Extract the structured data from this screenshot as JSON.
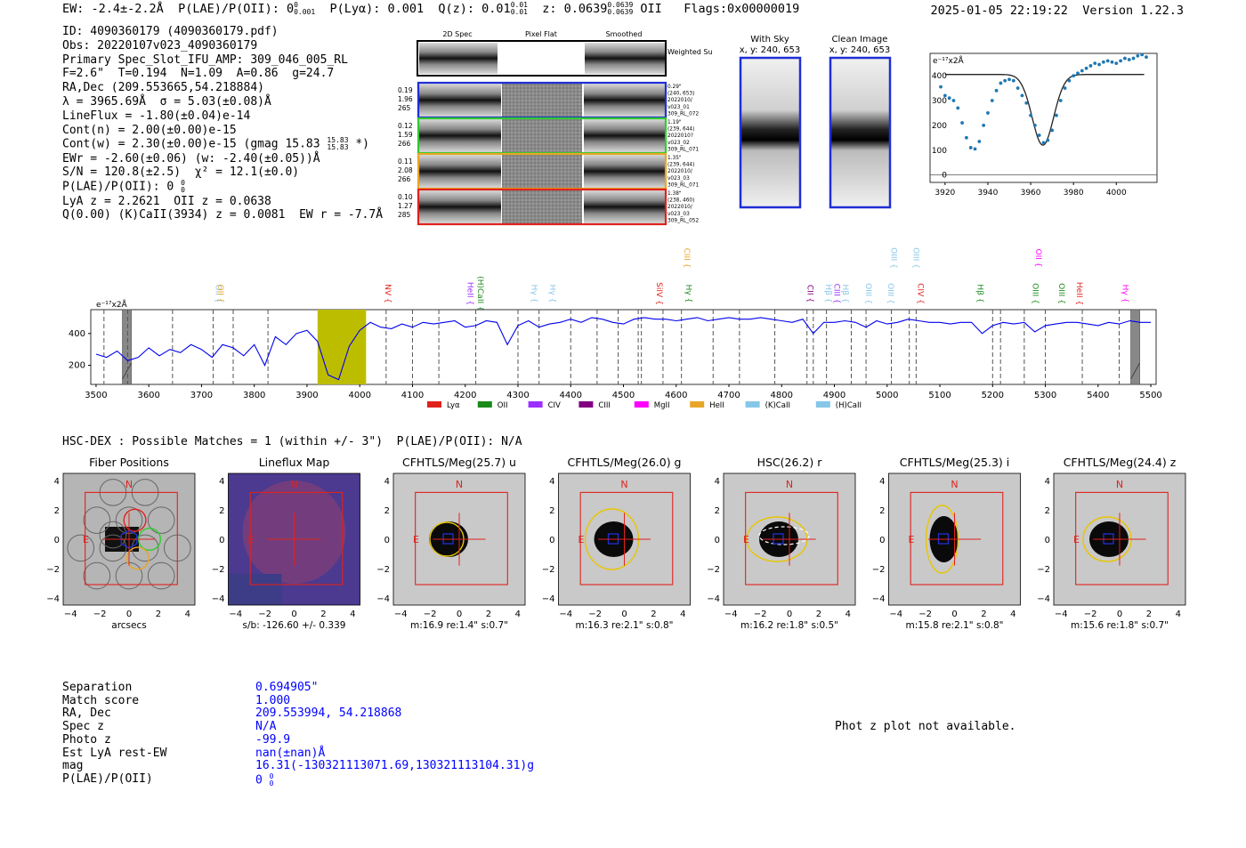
{
  "header": {
    "ew": "EW: -2.4±-2.2Å",
    "plae_label": "P(LAE)/P(OII): 0",
    "plae_sup": "0",
    "plae_sub": "0.001",
    "plya": "P(Lyα): 0.001",
    "qz_label": "Q(z): 0.01",
    "qz_sup": "0.01",
    "qz_sub": "0.01",
    "z_label": "z: 0.0639",
    "z_sup": "0.0639",
    "z_sub": "0.0639",
    "z_line": "OII",
    "flags": "Flags:0x00000019",
    "datetime": "2025-01-05 22:19:22",
    "version": "Version 1.22.3"
  },
  "info": {
    "id": "ID: 4090360179 (4090360179.pdf)",
    "obs": "Obs: 20220107v023_4090360179",
    "primary": "Primary Spec_Slot_IFU_AMP: 309_046_005_RL",
    "fibers": "F=2.6\"  T=0.194  N=1.09  A=0.86  g=24.7",
    "radec": "RA,Dec (209.553665,54.218884)",
    "lambda": "λ = 3965.69Å  σ = 5.03(±0.08)Å",
    "lineflux": "LineFlux = -1.80(±0.04)e-14",
    "contn": "Cont(n) = 2.00(±0.00)e-15",
    "contw": "Cont(w) = 2.30(±0.00)e-15 (gmag 15.83",
    "contw_sup": "15.83",
    "contw_sub": "15.83",
    "contw_end": "*)",
    "ewr": "EWr = -2.60(±0.06) (w: -2.40(±0.05))Å",
    "sn": "S/N = 120.8(±2.5)  χ² = 12.1(±0.0)",
    "plae": "P(LAE)/P(OII): 0",
    "plae_sup": "0",
    "plae_sub": "0",
    "lya": "LyA z = 2.2621  OII z = 0.0638",
    "q": "Q(0.00) (K)CaII(3934) z = 0.0081  EW r = -7.7Å"
  },
  "spec2d": {
    "col_titles": [
      "2D Spec",
      "Pixel Flat",
      "Smoothed"
    ],
    "weighted": "Weighted Sum",
    "rows": [
      {
        "left": [
          "0.19",
          "1.96",
          "265"
        ],
        "right": [
          "0.29\"",
          "(240, 653)",
          "2022010/",
          "v023_01",
          "309_RL_072"
        ],
        "color": "#1f2fd6"
      },
      {
        "left": [
          "0.12",
          "1.59",
          "266"
        ],
        "right": [
          "1.19\"",
          "(239, 644)",
          "2022010?",
          "v023_02",
          "309_RL_071"
        ],
        "color": "#2fcc2f"
      },
      {
        "left": [
          "0.11",
          "2.08",
          "266"
        ],
        "right": [
          "1.35\"",
          "(239, 644)",
          "2022010/",
          "v023_03",
          "309_RL_071"
        ],
        "color": "#e8a628"
      },
      {
        "left": [
          "0.10",
          "1.27",
          "285"
        ],
        "right": [
          "1.38\"",
          "(238, 460)",
          "2022010/",
          "v023_03",
          "309_RL_052"
        ],
        "color": "#e0221d"
      }
    ]
  },
  "cutouts": {
    "with_sky": "With Sky",
    "with_sky_xy": "x, y: 240, 653",
    "clean": "Clean Image",
    "clean_xy": "x, y: 240, 653"
  },
  "zoom_chart": {
    "type": "scatter",
    "units": "e⁻¹⁷x2Å",
    "x": [
      3918,
      3920,
      3922,
      3924,
      3926,
      3928,
      3930,
      3932,
      3934,
      3936,
      3938,
      3940,
      3942,
      3944,
      3946,
      3948,
      3950,
      3952,
      3954,
      3956,
      3958,
      3960,
      3962,
      3964,
      3966,
      3968,
      3970,
      3972,
      3974,
      3976,
      3978,
      3980,
      3982,
      3984,
      3986,
      3988,
      3990,
      3992,
      3994,
      3996,
      3998,
      4000,
      4002,
      4004,
      4006,
      4008,
      4010,
      4012,
      4014
    ],
    "y": [
      355,
      320,
      310,
      300,
      270,
      210,
      150,
      110,
      105,
      135,
      200,
      250,
      300,
      340,
      370,
      380,
      385,
      380,
      350,
      320,
      290,
      240,
      200,
      160,
      130,
      140,
      180,
      240,
      300,
      350,
      380,
      400,
      410,
      420,
      430,
      440,
      450,
      445,
      455,
      460,
      455,
      450,
      460,
      470,
      465,
      470,
      480,
      485,
      475
    ],
    "fit_label": "model",
    "ylim": [
      -30,
      490
    ],
    "xlim": [
      3913,
      4019
    ],
    "xticks": [
      "3920",
      "3940",
      "3960",
      "3980",
      "4000"
    ],
    "yticks": [
      "0",
      "100",
      "200",
      "300",
      "400"
    ]
  },
  "chart_data": {
    "type": "line",
    "title": "",
    "units": "e⁻¹⁷x2Å",
    "xlim": [
      3490,
      5510
    ],
    "ylim": [
      80,
      550
    ],
    "xticks": [
      "3500",
      "3600",
      "3700",
      "3800",
      "3900",
      "4000",
      "4100",
      "4200",
      "4300",
      "4400",
      "4500",
      "4600",
      "4700",
      "4800",
      "4900",
      "5000",
      "5100",
      "5200",
      "5300",
      "5400",
      "5500"
    ],
    "yticks": [
      "200",
      "400"
    ],
    "highlight_range": [
      3920,
      4012
    ],
    "series": [
      {
        "name": "spectrum",
        "x": [
          3500,
          3520,
          3540,
          3560,
          3580,
          3600,
          3620,
          3640,
          3660,
          3680,
          3700,
          3720,
          3740,
          3760,
          3780,
          3800,
          3820,
          3840,
          3860,
          3880,
          3900,
          3920,
          3940,
          3960,
          3980,
          4000,
          4020,
          4040,
          4060,
          4080,
          4100,
          4120,
          4140,
          4160,
          4180,
          4200,
          4220,
          4240,
          4260,
          4280,
          4300,
          4320,
          4340,
          4360,
          4380,
          4400,
          4420,
          4440,
          4460,
          4480,
          4500,
          4520,
          4540,
          4560,
          4580,
          4600,
          4620,
          4640,
          4660,
          4680,
          4700,
          4720,
          4740,
          4760,
          4780,
          4800,
          4820,
          4840,
          4860,
          4880,
          4900,
          4920,
          4940,
          4960,
          4980,
          5000,
          5020,
          5040,
          5060,
          5080,
          5100,
          5120,
          5140,
          5160,
          5180,
          5200,
          5220,
          5240,
          5260,
          5280,
          5300,
          5320,
          5340,
          5360,
          5380,
          5400,
          5420,
          5440,
          5460,
          5480,
          5500
        ],
        "y": [
          270,
          250,
          290,
          230,
          250,
          310,
          260,
          300,
          280,
          330,
          300,
          250,
          330,
          310,
          260,
          330,
          200,
          380,
          330,
          400,
          420,
          350,
          140,
          110,
          320,
          420,
          470,
          440,
          430,
          460,
          440,
          470,
          460,
          470,
          480,
          440,
          450,
          480,
          470,
          330,
          450,
          480,
          440,
          460,
          470,
          490,
          470,
          500,
          490,
          470,
          460,
          490,
          500,
          490,
          490,
          480,
          490,
          500,
          480,
          490,
          500,
          490,
          490,
          500,
          490,
          480,
          470,
          490,
          400,
          470,
          470,
          480,
          470,
          440,
          480,
          460,
          470,
          490,
          480,
          470,
          470,
          460,
          470,
          470,
          400,
          450,
          470,
          460,
          470,
          410,
          450,
          460,
          470,
          470,
          460,
          450,
          470,
          460,
          480,
          470,
          470
        ]
      }
    ],
    "vlines": [
      3515,
      3560,
      3645,
      3722,
      3760,
      3826,
      4050,
      4100,
      4150,
      4220,
      4300,
      4340,
      4400,
      4450,
      4490,
      4528,
      4534,
      4575,
      4610,
      4670,
      4720,
      4787,
      4848,
      4860,
      4885,
      4932,
      4960,
      5008,
      5042,
      5055,
      5200,
      5215,
      5260,
      5300,
      5370,
      5440
    ],
    "hatched": [
      3550,
      5462
    ],
    "line_labels": [
      {
        "text": "OII",
        "x": 3727,
        "color": "#86c6e8",
        "row": 1
      },
      {
        "text": "OII",
        "x": 3731,
        "color": "#e8a628",
        "row": 1
      },
      {
        "text": "NV",
        "x": 4049,
        "color": "#e0221d",
        "row": 1
      },
      {
        "text": "HeII",
        "x": 4205,
        "color": "#9b30ff",
        "row": 1
      },
      {
        "text": "(H)CaII",
        "x": 4224,
        "color": "#1a8a1a",
        "row": 1
      },
      {
        "text": "Hγ",
        "x": 4326,
        "color": "#86c6e8",
        "row": 1
      },
      {
        "text": "Hγ",
        "x": 4361,
        "color": "#86c6e8",
        "row": 1
      },
      {
        "text": "SiIV",
        "x": 4563,
        "color": "#e0221d",
        "row": 1
      },
      {
        "text": "Hγ",
        "x": 4619,
        "color": "#1a8a1a",
        "row": 1
      },
      {
        "text": "CIII",
        "x": 4616,
        "color": "#e8a628",
        "row": 0
      },
      {
        "text": "CII",
        "x": 4849,
        "color": "#800080",
        "row": 1
      },
      {
        "text": "Hβ",
        "x": 4884,
        "color": "#86c6e8",
        "row": 1
      },
      {
        "text": "CIII",
        "x": 4900,
        "color": "#9b30ff",
        "row": 1
      },
      {
        "text": "Hβ",
        "x": 4916,
        "color": "#86c6e8",
        "row": 1
      },
      {
        "text": "OIII",
        "x": 4960,
        "color": "#86c6e8",
        "row": 1
      },
      {
        "text": "OIII",
        "x": 5002,
        "color": "#86c6e8",
        "row": 1
      },
      {
        "text": "OIII",
        "x": 5008,
        "color": "#86c6e8",
        "row": 0
      },
      {
        "text": "OIII",
        "x": 5050,
        "color": "#86c6e8",
        "row": 0
      },
      {
        "text": "CIV",
        "x": 5059,
        "color": "#e0221d",
        "row": 1
      },
      {
        "text": "Hβ",
        "x": 5172,
        "color": "#1a8a1a",
        "row": 1
      },
      {
        "text": "OIII",
        "x": 5276,
        "color": "#1a8a1a",
        "row": 1
      },
      {
        "text": "OII",
        "x": 5282,
        "color": "#ff00ff",
        "row": 0
      },
      {
        "text": "OIII",
        "x": 5326,
        "color": "#1a8a1a",
        "row": 1
      },
      {
        "text": "HeII",
        "x": 5360,
        "color": "#e0221d",
        "row": 1
      },
      {
        "text": "Hγ",
        "x": 5447,
        "color": "#ff00ff",
        "row": 1
      }
    ],
    "legend": [
      {
        "label": "Lyα",
        "color": "#e0221d"
      },
      {
        "label": "OII",
        "color": "#1a8a1a"
      },
      {
        "label": "CIV",
        "color": "#9b30ff"
      },
      {
        "label": "CIII",
        "color": "#800080"
      },
      {
        "label": "MgII",
        "color": "#ff00ff"
      },
      {
        "label": "HeII",
        "color": "#e8a628"
      },
      {
        "label": "(K)CaII",
        "color": "#86c6e8"
      },
      {
        "label": "(H)CaII",
        "color": "#86c6e8"
      }
    ]
  },
  "hsc": {
    "header": "HSC-DEX : Possible Matches = 1 (within +/- 3\")  P(LAE)/P(OII): N/A",
    "panels": [
      {
        "title": "Fiber Positions",
        "caption": "arcsecs",
        "kind": "fiber"
      },
      {
        "title": "Lineflux Map",
        "caption": "s/b: -126.60 +/- 0.339",
        "kind": "lineflux"
      },
      {
        "title": "CFHTLS/Meg(25.7) u",
        "caption": "m:16.9  re:1.4\"  s:0.7\"",
        "kind": "img"
      },
      {
        "title": "CFHTLS/Meg(26.0) g",
        "caption": "m:16.3  re:2.1\"  s:0.8\"",
        "kind": "img"
      },
      {
        "title": "HSC(26.2) r",
        "caption": "m:16.2  re:1.8\"  s:0.5\"",
        "kind": "img"
      },
      {
        "title": "CFHTLS/Meg(25.3) i",
        "caption": "m:15.8  re:2.1\"  s:0.8\"",
        "kind": "img"
      },
      {
        "title": "CFHTLS/Meg(24.4) z",
        "caption": "m:15.6  re:1.8\"  s:0.7\"",
        "kind": "img"
      }
    ],
    "north": "N",
    "east": "E",
    "axis_ticks": [
      "4",
      "2",
      "0",
      "−2",
      "−4"
    ],
    "xaxis_ticks": [
      "−4",
      "−2",
      "0",
      "2",
      "4"
    ]
  },
  "match": {
    "rows": [
      {
        "k": "Separation",
        "v": "0.694905\""
      },
      {
        "k": "Match score",
        "v": "1.000"
      },
      {
        "k": "RA, Dec",
        "v": "209.553994, 54.218868"
      },
      {
        "k": "Spec z",
        "v": "N/A"
      },
      {
        "k": "Photo z",
        "v": "-99.9"
      },
      {
        "k": "Est LyA rest-EW",
        "v": "nan(±nan)Å"
      },
      {
        "k": "mag",
        "v": "16.31(-130321113071.69,130321113104.31)g"
      },
      {
        "k": "P(LAE)/P(OII)",
        "v": "0"
      }
    ],
    "plae_sup": "0",
    "plae_sub": "0"
  },
  "photz": "Phot z plot not available."
}
